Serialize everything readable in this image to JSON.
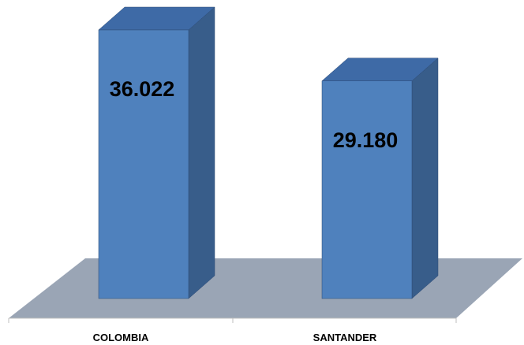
{
  "chart_data": {
    "type": "bar",
    "categories": [
      "COLOMBIA",
      "SANTANDER"
    ],
    "values": [
      36.022,
      29.18
    ],
    "value_labels": [
      "36.022",
      "29.180"
    ],
    "ylim": [
      0,
      40
    ],
    "grid": false,
    "legend": "none",
    "three_d": true,
    "colors": {
      "bar_front": "#4f81bd",
      "bar_side": "#385d8a",
      "bar_top": "#3e6aa6",
      "bar_edge": "#2c4a75",
      "floor": "#9aa5b5",
      "axis": "#bfbfbf",
      "label": "#000000"
    }
  }
}
